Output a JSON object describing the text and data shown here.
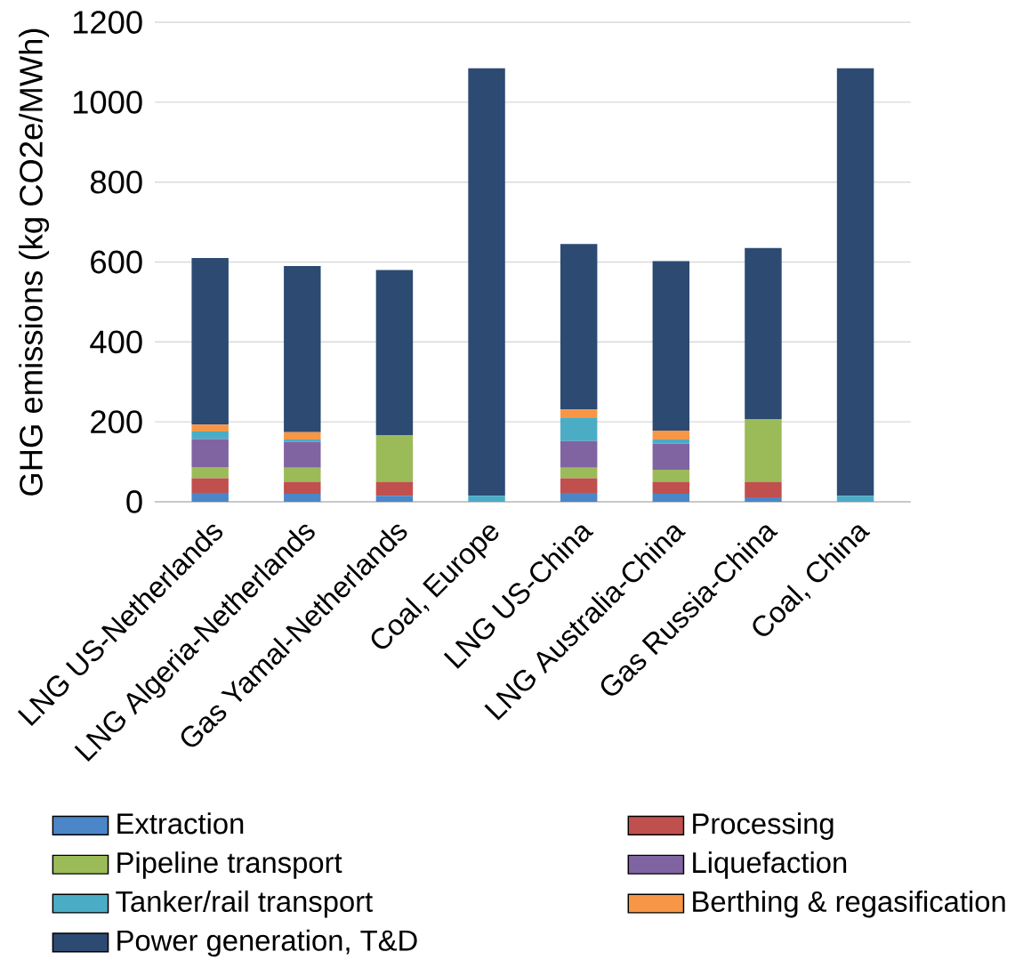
{
  "chart_data": {
    "type": "bar",
    "stacked": true,
    "ylabel": "GHG emissions (kg CO2e/MWh)",
    "categories": [
      "LNG US-Netherlands",
      "LNG Algeria-Netherlands",
      "Gas Yamal-Netherlands",
      "Coal, Europe",
      "LNG US-China",
      "LNG Australia-China",
      "Gas Russia-China",
      "Coal, China"
    ],
    "series": [
      {
        "name": "Extraction",
        "color": "#4a86c8",
        "values": [
          22,
          20,
          15,
          0,
          22,
          20,
          11,
          0
        ]
      },
      {
        "name": "Processing",
        "color": "#c0504d",
        "values": [
          37,
          30,
          35,
          0,
          37,
          30,
          39,
          0
        ]
      },
      {
        "name": "Pipeline transport",
        "color": "#9bbb59",
        "values": [
          28,
          35,
          117,
          0,
          26,
          30,
          157,
          0
        ]
      },
      {
        "name": "Liquefaction",
        "color": "#8064a2",
        "values": [
          70,
          65,
          0,
          0,
          67,
          65,
          0,
          0
        ]
      },
      {
        "name": "Tanker/rail transport",
        "color": "#4bacc6",
        "values": [
          19,
          6,
          0,
          15,
          59,
          11,
          0,
          15
        ]
      },
      {
        "name": "Berthing & regasification",
        "color": "#f79646",
        "values": [
          17,
          18,
          0,
          0,
          20,
          22,
          0,
          0
        ]
      },
      {
        "name": "Power generation, T&D",
        "color": "#2c4a72",
        "values": [
          417,
          416,
          413,
          1070,
          414,
          424,
          428,
          1070
        ]
      }
    ],
    "ylim": [
      0,
      1200
    ],
    "yticks": [
      0,
      200,
      400,
      600,
      800,
      1000,
      1200
    ],
    "grid": "y",
    "legend": "bottom"
  }
}
